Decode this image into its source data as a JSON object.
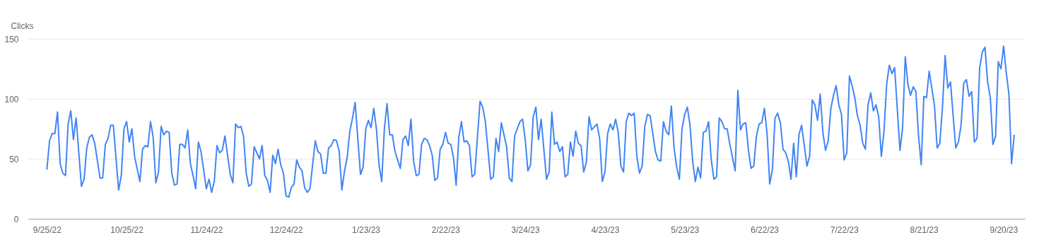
{
  "chart_data": {
    "type": "line",
    "ylabel": "Clicks",
    "color": "#4285f4",
    "grid": "y",
    "line_style": "solid",
    "xlim": [
      "2022-09-18",
      "2023-09-28"
    ],
    "xticks": [
      {
        "value": "2022-09-25",
        "label": "9/25/22"
      },
      {
        "value": "2022-10-25",
        "label": "10/25/22"
      },
      {
        "value": "2022-11-24",
        "label": "11/24/22"
      },
      {
        "value": "2022-12-24",
        "label": "12/24/22"
      },
      {
        "value": "2023-01-23",
        "label": "1/23/23"
      },
      {
        "value": "2023-02-22",
        "label": "2/22/23"
      },
      {
        "value": "2023-03-24",
        "label": "3/24/23"
      },
      {
        "value": "2023-04-23",
        "label": "4/23/23"
      },
      {
        "value": "2023-05-23",
        "label": "5/23/23"
      },
      {
        "value": "2023-06-22",
        "label": "6/22/23"
      },
      {
        "value": "2023-07-22",
        "label": "7/22/23"
      },
      {
        "value": "2023-08-21",
        "label": "8/21/23"
      },
      {
        "value": "2023-09-20",
        "label": "9/20/23"
      }
    ],
    "ylim": [
      0,
      150
    ],
    "yticks": [
      0,
      50,
      100,
      150
    ],
    "x": [
      "2022-09-25",
      "2022-09-26",
      "2022-09-27",
      "2022-09-28",
      "2022-09-29",
      "2022-09-30",
      "2022-10-01",
      "2022-10-02",
      "2022-10-03",
      "2022-10-04",
      "2022-10-05",
      "2022-10-06",
      "2022-10-08",
      "2022-10-09",
      "2022-10-10",
      "2022-10-11",
      "2022-10-12",
      "2022-10-13",
      "2022-10-15",
      "2022-10-16",
      "2022-10-17",
      "2022-10-18",
      "2022-10-19",
      "2022-10-20",
      "2022-10-22",
      "2022-10-23",
      "2022-10-24",
      "2022-10-25",
      "2022-10-26",
      "2022-10-27",
      "2022-10-28",
      "2022-10-30",
      "2022-10-31",
      "2022-11-01",
      "2022-11-02",
      "2022-11-03",
      "2022-11-04",
      "2022-11-05",
      "2022-11-06",
      "2022-11-07",
      "2022-11-08",
      "2022-11-09",
      "2022-11-10",
      "2022-11-11",
      "2022-11-12",
      "2022-11-13",
      "2022-11-14",
      "2022-11-15",
      "2022-11-16",
      "2022-11-17",
      "2022-11-18",
      "2022-11-19",
      "2022-11-20",
      "2022-11-21",
      "2022-11-22",
      "2022-11-24",
      "2022-11-25",
      "2022-11-26",
      "2022-11-27",
      "2022-11-28",
      "2022-11-29",
      "2022-11-30",
      "2022-12-01",
      "2022-12-03",
      "2022-12-04",
      "2022-12-05",
      "2022-12-06",
      "2022-12-07",
      "2022-12-08",
      "2022-12-09",
      "2022-12-10",
      "2022-12-11",
      "2022-12-12",
      "2022-12-14",
      "2022-12-15",
      "2022-12-16",
      "2022-12-17",
      "2022-12-18",
      "2022-12-19",
      "2022-12-20",
      "2022-12-21",
      "2022-12-22",
      "2022-12-23",
      "2022-12-24",
      "2022-12-25",
      "2022-12-26",
      "2022-12-27",
      "2022-12-28",
      "2022-12-29",
      "2022-12-30",
      "2022-12-31",
      "2023-01-01",
      "2023-01-02",
      "2023-01-04",
      "2023-01-05",
      "2023-01-06",
      "2023-01-07",
      "2023-01-08",
      "2023-01-09",
      "2023-01-10",
      "2023-01-11",
      "2023-01-12",
      "2023-01-13",
      "2023-01-14",
      "2023-01-15",
      "2023-01-16",
      "2023-01-17",
      "2023-01-18",
      "2023-01-19",
      "2023-01-21",
      "2023-01-22",
      "2023-01-23",
      "2023-01-24",
      "2023-01-25",
      "2023-01-26",
      "2023-01-27",
      "2023-01-28",
      "2023-01-29",
      "2023-01-30",
      "2023-01-31",
      "2023-02-01",
      "2023-02-02",
      "2023-02-03",
      "2023-02-05",
      "2023-02-06",
      "2023-02-07",
      "2023-02-08",
      "2023-02-09",
      "2023-02-10",
      "2023-02-11",
      "2023-02-12",
      "2023-02-13",
      "2023-02-14",
      "2023-02-15",
      "2023-02-16",
      "2023-02-17",
      "2023-02-18",
      "2023-02-19",
      "2023-02-20",
      "2023-02-21",
      "2023-02-22",
      "2023-02-23",
      "2023-02-24",
      "2023-02-25",
      "2023-02-26",
      "2023-02-27",
      "2023-02-28",
      "2023-03-01",
      "2023-03-02",
      "2023-03-03",
      "2023-03-04",
      "2023-03-05",
      "2023-03-07",
      "2023-03-08",
      "2023-03-09",
      "2023-03-11",
      "2023-03-12",
      "2023-03-13",
      "2023-03-14",
      "2023-03-15",
      "2023-03-17",
      "2023-03-18",
      "2023-03-19",
      "2023-03-20",
      "2023-03-21",
      "2023-03-22",
      "2023-03-23",
      "2023-03-24",
      "2023-03-25",
      "2023-03-26",
      "2023-03-27",
      "2023-03-28",
      "2023-03-29",
      "2023-03-30",
      "2023-04-01",
      "2023-04-02",
      "2023-04-03",
      "2023-04-04",
      "2023-04-05",
      "2023-04-06",
      "2023-04-07",
      "2023-04-08",
      "2023-04-09",
      "2023-04-10",
      "2023-04-11",
      "2023-04-12",
      "2023-04-13",
      "2023-04-14",
      "2023-04-15",
      "2023-04-16",
      "2023-04-17",
      "2023-04-18",
      "2023-04-20",
      "2023-04-21",
      "2023-04-22",
      "2023-04-23",
      "2023-04-24",
      "2023-04-25",
      "2023-04-26",
      "2023-04-27",
      "2023-04-28",
      "2023-04-29",
      "2023-04-30",
      "2023-05-01",
      "2023-05-02",
      "2023-05-03",
      "2023-05-04",
      "2023-05-05",
      "2023-05-06",
      "2023-05-07",
      "2023-05-08",
      "2023-05-09",
      "2023-05-10",
      "2023-05-12",
      "2023-05-13",
      "2023-05-14",
      "2023-05-15",
      "2023-05-16",
      "2023-05-17",
      "2023-05-18",
      "2023-05-19",
      "2023-05-20",
      "2023-05-21",
      "2023-05-22",
      "2023-05-23",
      "2023-05-24",
      "2023-05-25",
      "2023-05-26",
      "2023-05-27",
      "2023-05-28",
      "2023-05-29",
      "2023-05-30",
      "2023-05-31",
      "2023-06-01",
      "2023-06-02",
      "2023-06-03",
      "2023-06-04",
      "2023-06-05",
      "2023-06-06",
      "2023-06-07",
      "2023-06-08",
      "2023-06-09",
      "2023-06-11",
      "2023-06-12",
      "2023-06-13",
      "2023-06-14",
      "2023-06-15",
      "2023-06-16",
      "2023-06-17",
      "2023-06-18",
      "2023-06-19",
      "2023-06-20",
      "2023-06-21",
      "2023-06-22",
      "2023-06-23",
      "2023-06-24",
      "2023-06-25",
      "2023-06-26",
      "2023-06-27",
      "2023-06-28",
      "2023-06-29",
      "2023-06-30",
      "2023-07-01",
      "2023-07-02",
      "2023-07-03",
      "2023-07-04",
      "2023-07-05",
      "2023-07-06",
      "2023-07-08",
      "2023-07-09",
      "2023-07-10",
      "2023-07-11",
      "2023-07-12",
      "2023-07-13",
      "2023-07-14",
      "2023-07-15",
      "2023-07-16",
      "2023-07-17",
      "2023-07-18",
      "2023-07-19",
      "2023-07-20",
      "2023-07-21",
      "2023-07-22",
      "2023-07-23",
      "2023-07-24",
      "2023-07-25",
      "2023-07-26",
      "2023-07-27",
      "2023-07-28",
      "2023-07-29",
      "2023-07-30",
      "2023-07-31",
      "2023-08-01",
      "2023-08-02",
      "2023-08-03",
      "2023-08-04",
      "2023-08-05",
      "2023-08-06",
      "2023-08-07",
      "2023-08-08",
      "2023-08-09",
      "2023-08-10",
      "2023-08-12",
      "2023-08-13",
      "2023-08-14",
      "2023-08-15",
      "2023-08-16",
      "2023-08-17",
      "2023-08-18",
      "2023-08-19",
      "2023-08-20",
      "2023-08-21",
      "2023-08-22",
      "2023-08-23",
      "2023-08-25",
      "2023-08-26",
      "2023-08-27",
      "2023-08-28",
      "2023-08-29",
      "2023-08-30",
      "2023-08-31",
      "2023-09-02",
      "2023-09-03",
      "2023-09-04",
      "2023-09-05",
      "2023-09-06",
      "2023-09-07",
      "2023-09-08",
      "2023-09-09",
      "2023-09-10",
      "2023-09-11",
      "2023-09-12",
      "2023-09-13",
      "2023-09-14",
      "2023-09-15",
      "2023-09-16",
      "2023-09-17",
      "2023-09-18",
      "2023-09-19",
      "2023-09-20",
      "2023-09-21",
      "2023-09-22",
      "2023-09-23",
      "2023-09-24"
    ],
    "values": [
      41,
      65,
      71,
      71,
      89,
      46,
      38,
      36,
      79,
      90,
      66,
      84,
      27,
      33,
      59,
      68,
      70,
      63,
      34,
      34,
      62,
      67,
      78,
      78,
      24,
      36,
      75,
      81,
      64,
      75,
      52,
      31,
      58,
      61,
      60,
      81,
      68,
      30,
      39,
      77,
      70,
      73,
      72,
      38,
      28,
      29,
      62,
      62,
      59,
      74,
      46,
      36,
      25,
      64,
      56,
      25,
      33,
      22,
      31,
      61,
      55,
      57,
      69,
      37,
      30,
      79,
      76,
      77,
      69,
      38,
      27,
      29,
      60,
      50,
      61,
      36,
      32,
      22,
      53,
      46,
      58,
      45,
      38,
      19,
      18,
      26,
      29,
      49,
      43,
      40,
      26,
      22,
      25,
      65,
      56,
      54,
      38,
      38,
      59,
      61,
      66,
      65,
      56,
      24,
      40,
      51,
      73,
      84,
      97,
      37,
      43,
      75,
      82,
      76,
      92,
      75,
      45,
      31,
      75,
      96,
      70,
      70,
      56,
      42,
      66,
      69,
      61,
      83,
      48,
      36,
      37,
      62,
      67,
      66,
      61,
      53,
      32,
      34,
      58,
      62,
      72,
      63,
      62,
      51,
      28,
      68,
      81,
      64,
      65,
      61,
      35,
      37,
      98,
      93,
      81,
      33,
      35,
      67,
      56,
      80,
      60,
      34,
      31,
      69,
      75,
      81,
      83,
      66,
      40,
      45,
      85,
      93,
      66,
      83,
      33,
      39,
      89,
      62,
      64,
      56,
      60,
      35,
      37,
      64,
      52,
      73,
      63,
      61,
      39,
      47,
      85,
      74,
      79,
      67,
      31,
      39,
      71,
      79,
      74,
      83,
      72,
      44,
      39,
      81,
      88,
      86,
      88,
      52,
      38,
      44,
      77,
      87,
      86,
      56,
      49,
      48,
      81,
      73,
      70,
      94,
      59,
      43,
      33,
      75,
      87,
      93,
      78,
      48,
      31,
      43,
      34,
      72,
      73,
      81,
      49,
      33,
      35,
      84,
      81,
      75,
      75,
      62,
      40,
      107,
      74,
      79,
      80,
      57,
      42,
      44,
      69,
      79,
      80,
      92,
      71,
      29,
      41,
      84,
      88,
      80,
      58,
      55,
      48,
      33,
      63,
      35,
      70,
      78,
      44,
      52,
      99,
      95,
      82,
      104,
      72,
      57,
      65,
      92,
      103,
      111,
      95,
      87,
      49,
      55,
      119,
      111,
      101,
      86,
      78,
      63,
      58,
      95,
      105,
      90,
      95,
      85,
      52,
      73,
      112,
      128,
      121,
      126,
      57,
      76,
      135,
      112,
      103,
      110,
      106,
      69,
      45,
      102,
      101,
      123,
      94,
      59,
      63,
      93,
      136,
      109,
      114,
      59,
      64,
      78,
      113,
      116,
      102,
      106,
      64,
      67,
      126,
      139,
      143,
      114,
      101,
      62,
      69,
      131,
      125,
      144,
      122,
      104,
      46,
      70
    ]
  }
}
